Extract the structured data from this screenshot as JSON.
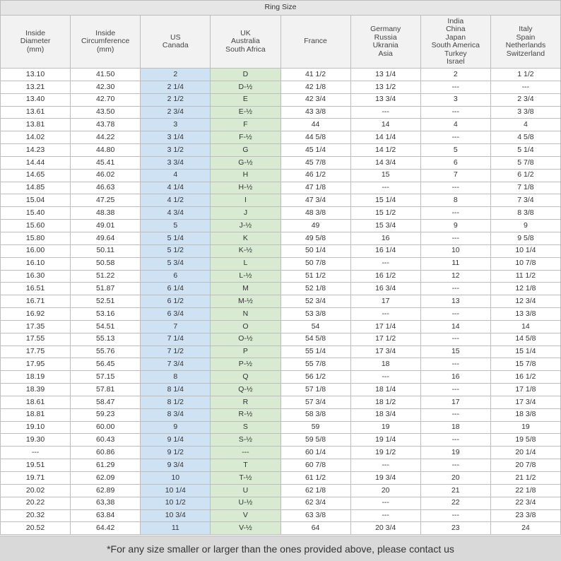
{
  "table": {
    "title": "Ring Size",
    "columns": [
      [
        "Inside",
        "Diameter",
        "(mm)"
      ],
      [
        "Inside",
        "Circumference",
        "(mm)"
      ],
      [
        "US",
        "Canada"
      ],
      [
        "UK",
        "Australia",
        "South Africa"
      ],
      [
        "France"
      ],
      [
        "Germany",
        "Russia",
        "Ukrania",
        "Asia"
      ],
      [
        "India",
        "China",
        "Japan",
        "South America",
        "Turkey",
        "Israel"
      ],
      [
        "Italy",
        "Spain",
        "Netherlands",
        "Switzerland"
      ]
    ],
    "rows": [
      [
        "13.10",
        "41.50",
        "2",
        "D",
        "41 1/2",
        "13 1/4",
        "2",
        "1 1/2"
      ],
      [
        "13.21",
        "42.30",
        "2 1/4",
        "D-½",
        "42 1/8",
        "13 1/2",
        "---",
        "---"
      ],
      [
        "13.40",
        "42.70",
        "2 1/2",
        "E",
        "42 3/4",
        "13 3/4",
        "3",
        "2 3/4"
      ],
      [
        "13.61",
        "43.50",
        "2 3/4",
        "E-½",
        "43 3/8",
        "---",
        "---",
        "3 3/8"
      ],
      [
        "13.81",
        "43.78",
        "3",
        "F",
        "44",
        "14",
        "4",
        "4"
      ],
      [
        "14.02",
        "44.22",
        "3 1/4",
        "F-½",
        "44 5/8",
        "14 1/4",
        "---",
        "4 5/8"
      ],
      [
        "14.23",
        "44.80",
        "3 1/2",
        "G",
        "45 1/4",
        "14 1/2",
        "5",
        "5 1/4"
      ],
      [
        "14.44",
        "45.41",
        "3 3/4",
        "G-½",
        "45 7/8",
        "14 3/4",
        "6",
        "5 7/8"
      ],
      [
        "14.65",
        "46.02",
        "4",
        "H",
        "46 1/2",
        "15",
        "7",
        "6 1/2"
      ],
      [
        "14.85",
        "46.63",
        "4 1/4",
        "H-½",
        "47 1/8",
        "---",
        "---",
        "7 1/8"
      ],
      [
        "15.04",
        "47.25",
        "4 1/2",
        "I",
        "47 3/4",
        "15 1/4",
        "8",
        "7 3/4"
      ],
      [
        "15.40",
        "48.38",
        "4 3/4",
        "J",
        "48 3/8",
        "15 1/2",
        "---",
        "8 3/8"
      ],
      [
        "15.60",
        "49.01",
        "5",
        "J-½",
        "49",
        "15 3/4",
        "9",
        "9"
      ],
      [
        "15.80",
        "49.64",
        "5 1/4",
        "K",
        "49 5/8",
        "16",
        "---",
        "9 5/8"
      ],
      [
        "16.00",
        "50.11",
        "5 1/2",
        "K-½",
        "50 1/4",
        "16 1/4",
        "10",
        "10 1/4"
      ],
      [
        "16.10",
        "50.58",
        "5 3/4",
        "L",
        "50 7/8",
        "---",
        "11",
        "10 7/8"
      ],
      [
        "16.30",
        "51.22",
        "6",
        "L-½",
        "51 1/2",
        "16 1/2",
        "12",
        "11 1/2"
      ],
      [
        "16.51",
        "51.87",
        "6 1/4",
        "M",
        "52 1/8",
        "16 3/4",
        "---",
        "12 1/8"
      ],
      [
        "16.71",
        "52.51",
        "6 1/2",
        "M-½",
        "52 3/4",
        "17",
        "13",
        "12 3/4"
      ],
      [
        "16.92",
        "53.16",
        "6 3/4",
        "N",
        "53 3/8",
        "---",
        "---",
        "13 3/8"
      ],
      [
        "17.35",
        "54.51",
        "7",
        "O",
        "54",
        "17 1/4",
        "14",
        "14"
      ],
      [
        "17.55",
        "55.13",
        "7 1/4",
        "O-½",
        "54 5/8",
        "17 1/2",
        "---",
        "14 5/8"
      ],
      [
        "17.75",
        "55.76",
        "7 1/2",
        "P",
        "55 1/4",
        "17 3/4",
        "15",
        "15 1/4"
      ],
      [
        "17.95",
        "56.45",
        "7 3/4",
        "P-½",
        "55 7/8",
        "18",
        "---",
        "15 7/8"
      ],
      [
        "18.19",
        "57.15",
        "8",
        "Q",
        "56 1/2",
        "---",
        "16",
        "16 1/2"
      ],
      [
        "18.39",
        "57.81",
        "8 1/4",
        "Q-½",
        "57 1/8",
        "18 1/4",
        "---",
        "17 1/8"
      ],
      [
        "18.61",
        "58.47",
        "8 1/2",
        "R",
        "57 3/4",
        "18 1/2",
        "17",
        "17 3/4"
      ],
      [
        "18.81",
        "59.23",
        "8 3/4",
        "R-½",
        "58 3/8",
        "18 3/4",
        "---",
        "18 3/8"
      ],
      [
        "19.10",
        "60.00",
        "9",
        "S",
        "59",
        "19",
        "18",
        "19"
      ],
      [
        "19.30",
        "60.43",
        "9 1/4",
        "S-½",
        "59 5/8",
        "19 1/4",
        "---",
        "19 5/8"
      ],
      [
        "---",
        "60.86",
        "9 1/2",
        "---",
        "60 1/4",
        "19 1/2",
        "19",
        "20 1/4"
      ],
      [
        "19.51",
        "61.29",
        "9 3/4",
        "T",
        "60 7/8",
        "---",
        "---",
        "20 7/8"
      ],
      [
        "19.71",
        "62.09",
        "10",
        "T-½",
        "61 1/2",
        "19 3/4",
        "20",
        "21 1/2"
      ],
      [
        "20.02",
        "62.89",
        "10 1/4",
        "U",
        "62 1/8",
        "20",
        "21",
        "22 1/8"
      ],
      [
        "20.22",
        "63,38",
        "10 1/2",
        "U-½",
        "62 3/4",
        "---",
        "22",
        "22 3/4"
      ],
      [
        "20.32",
        "63.84",
        "10 3/4",
        "V",
        "63 3/8",
        "---",
        "---",
        "23 3/8"
      ],
      [
        "20.52",
        "64.42",
        "11",
        "V-½",
        "64",
        "20 3/4",
        "23",
        "24"
      ]
    ],
    "footer": "*For any size smaller or larger than the ones provided above, please contact us"
  }
}
